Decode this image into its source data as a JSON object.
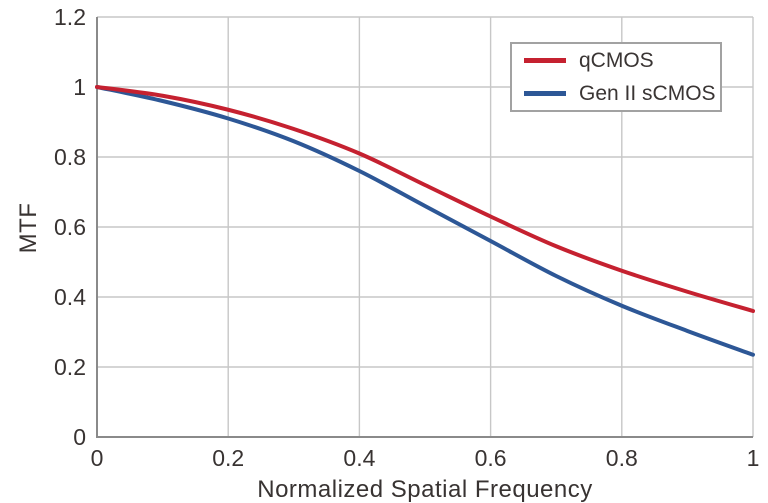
{
  "chart_data": {
    "type": "line",
    "title": "",
    "xlabel": "Normalized Spatial Frequency",
    "ylabel": "MTF",
    "xlim": [
      0,
      1
    ],
    "ylim": [
      0,
      1.2
    ],
    "x_ticks": [
      0,
      0.2,
      0.4,
      0.6,
      0.8,
      1
    ],
    "x_tick_labels": [
      "0",
      "0.2",
      "0.4",
      "0.6",
      "0.8",
      "1"
    ],
    "y_ticks": [
      0,
      0.2,
      0.4,
      0.6,
      0.8,
      1,
      1.2
    ],
    "y_tick_labels": [
      "0",
      "0.2",
      "0.4",
      "0.6",
      "0.8",
      "1",
      "1.2"
    ],
    "grid": true,
    "legend_position": "top-right",
    "x": [
      0,
      0.1,
      0.2,
      0.3,
      0.4,
      0.5,
      0.6,
      0.7,
      0.8,
      0.9,
      1.0
    ],
    "series": [
      {
        "name": "qCMOS",
        "color": "#c52130",
        "values": [
          1.0,
          0.975,
          0.935,
          0.88,
          0.81,
          0.72,
          0.63,
          0.545,
          0.475,
          0.415,
          0.36
        ]
      },
      {
        "name": "Gen II sCMOS",
        "color": "#2d5796",
        "values": [
          1.0,
          0.96,
          0.91,
          0.845,
          0.76,
          0.66,
          0.56,
          0.46,
          0.375,
          0.303,
          0.235
        ]
      }
    ],
    "style": {
      "grid_color": "#c7c7c7",
      "axis_color": "#8a8a8a",
      "tick_label_color": "#383332",
      "legend_border_color": "#a2a2a2",
      "line_width": 4
    }
  }
}
